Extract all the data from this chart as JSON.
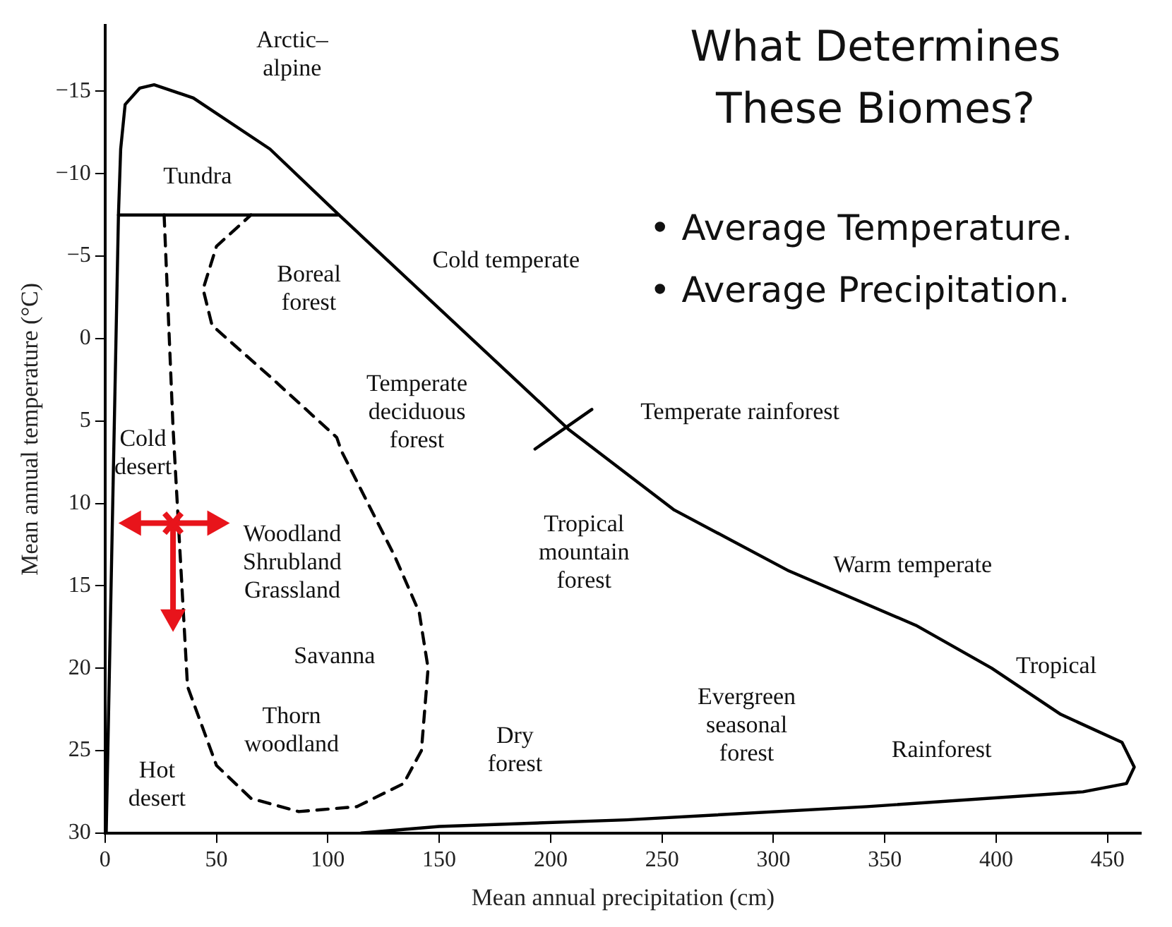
{
  "chart_data": {
    "type": "line",
    "title": "What Determines These Biomes?",
    "xlabel": "Mean annual precipitation (cm)",
    "ylabel": "Mean annual temperature (°C)",
    "xlim": [
      0,
      465
    ],
    "ylim": [
      30,
      -19
    ],
    "xticks": [
      0,
      50,
      100,
      150,
      200,
      250,
      300,
      350,
      400,
      450
    ],
    "yticks": [
      {
        "value": -15,
        "label": "−15"
      },
      {
        "value": -10,
        "label": "−10"
      },
      {
        "value": -5,
        "label": "−5"
      },
      0,
      5,
      10,
      15,
      20,
      25,
      30
    ],
    "grid": false,
    "legend": false,
    "marker": "none",
    "series": [
      {
        "color": "#000000",
        "line_style": "solid",
        "x": [
          115,
          150,
          234,
          342,
          439,
          458.5,
          462,
          456.5,
          429,
          398,
          364,
          307,
          255.5,
          208,
          105,
          74,
          39.6,
          22,
          15.6,
          9,
          7,
          6,
          0.5
        ],
        "values": [
          30,
          29.6,
          29.2,
          28.4,
          27.5,
          27,
          26,
          24.5,
          22.8,
          20,
          17.4,
          14.1,
          10.4,
          5.5,
          -7.5,
          -11.5,
          -14.6,
          -15.4,
          -15.2,
          -14.2,
          -11.5,
          -7.5,
          30
        ]
      },
      {
        "color": "#000000",
        "line_style": "solid",
        "x": [
          6,
          105
        ],
        "values": [
          -7.5,
          -7.5
        ]
      },
      {
        "color": "#000000",
        "line_style": "dashed",
        "x": [
          26.5,
          30.5,
          37,
          50,
          65.5,
          87,
          113,
          134,
          142,
          145,
          141,
          130,
          106,
          104,
          74,
          48,
          44,
          50,
          65.5
        ],
        "values": [
          -7.5,
          5.4,
          21.1,
          25.9,
          27.9,
          28.7,
          28.4,
          27,
          25,
          20,
          16.6,
          13.2,
          6.8,
          6,
          2.3,
          -0.8,
          -3,
          -5.6,
          -7.5
        ]
      },
      {
        "color": "#000000",
        "line_style": "solid",
        "x": [
          193,
          218.5
        ],
        "values": [
          6.7,
          4.3
        ]
      }
    ],
    "annotations": [
      "• Average Temperature.",
      "• Average Precipitation.",
      "Arctic–\nalpine",
      "Tundra",
      "Cold temperate",
      "Boreal\nforest",
      "Temperate\ndeciduous\nforest",
      "Temperate rainforest",
      "Cold\ndesert",
      {
        "text": "Woodland\nShrubland\nGrassland",
        "x": 30.5,
        "y": 11.2
      },
      "Tropical\nmountain\nforest",
      "Warm temperate",
      "Savanna",
      "Tropical",
      "Evergreen\nseasonal\nforest",
      "Thorn\nwoodland",
      "Dry\nforest",
      "Rainforest",
      "Hot\ndesert"
    ]
  }
}
